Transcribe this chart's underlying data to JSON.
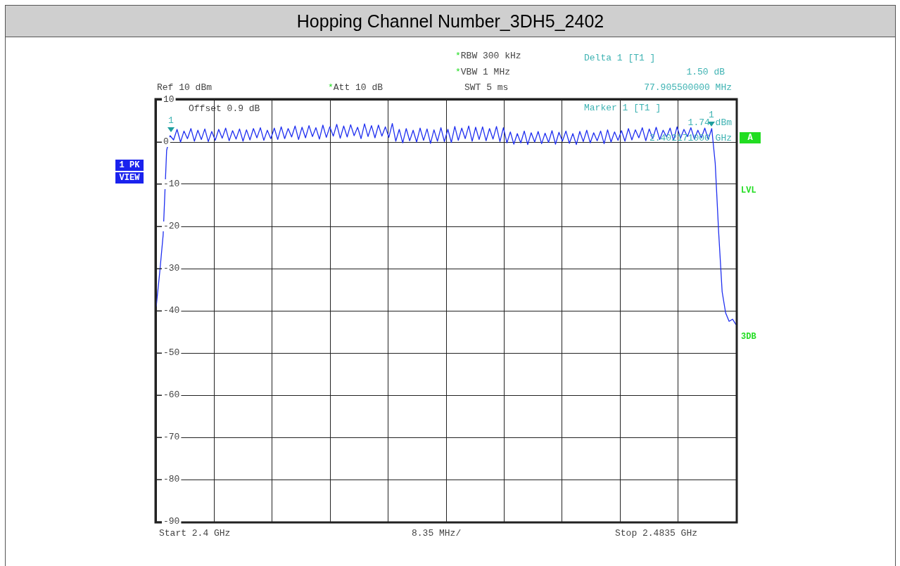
{
  "chart_data": {
    "type": "line",
    "title": "Hopping Channel Number_3DH5_2402",
    "categories": [
      null,
      null,
      null,
      null,
      null,
      null,
      null,
      null,
      null,
      null,
      null,
      null,
      null,
      null,
      null,
      null,
      null,
      null,
      null,
      null,
      null,
      null,
      null,
      null,
      null,
      null,
      null,
      null,
      null,
      null,
      null,
      null,
      null,
      null,
      null,
      null,
      null,
      null,
      null,
      null,
      null,
      null,
      null,
      null,
      null,
      null,
      null,
      null,
      null,
      null,
      null,
      null,
      null,
      null,
      null,
      null,
      null,
      null,
      null,
      null,
      null,
      null,
      null,
      null,
      null,
      null,
      null,
      null,
      null,
      null,
      null,
      null,
      null,
      null,
      null,
      null,
      null,
      null,
      null,
      null,
      null,
      null,
      null,
      null,
      null,
      null,
      null,
      null,
      null,
      null,
      null,
      null,
      null,
      null,
      null,
      null,
      null,
      null,
      null,
      null,
      null,
      null,
      null,
      null,
      null,
      null,
      null,
      null,
      null,
      null,
      null,
      null,
      null,
      null,
      null,
      null,
      null,
      null,
      null,
      null,
      null,
      null,
      null,
      null,
      null,
      null,
      null,
      null,
      null,
      null,
      null,
      null,
      null,
      null,
      null,
      null,
      null,
      null,
      null,
      null,
      null,
      null,
      null,
      null,
      null,
      null,
      null,
      null,
      null,
      null,
      null,
      null,
      null,
      null,
      null,
      null,
      null,
      null,
      null,
      null,
      null,
      null,
      null,
      null,
      null,
      null,
      null,
      null
    ],
    "ylim": [
      -90,
      10
    ],
    "yticks": [
      -90,
      -80,
      -70,
      -60,
      -50,
      -40,
      -30,
      -20,
      -10,
      0,
      10
    ],
    "tick_labels": "y",
    "grid": true,
    "legend": false,
    "marker": "none",
    "line_style": "solid",
    "series": [
      {
        "color": "#1f2ff0",
        "values": [
          -39,
          -31,
          -22,
          -2,
          1.5,
          0.5,
          3.0,
          0.0,
          2.6,
          0.8,
          3.2,
          0.2,
          2.8,
          0.6,
          3.1,
          0.1,
          2.5,
          0.4,
          3.0,
          0.9,
          3.3,
          0.3,
          2.7,
          0.7,
          3.1,
          0.2,
          2.9,
          0.5,
          3.2,
          1.0,
          3.4,
          0.4,
          2.8,
          0.8,
          3.3,
          0.6,
          3.6,
          0.8,
          3.2,
          1.2,
          3.8,
          0.6,
          3.5,
          1.0,
          3.9,
          1.3,
          3.4,
          0.7,
          4.0,
          1.1,
          3.6,
          1.4,
          4.2,
          0.9,
          3.8,
          1.2,
          4.1,
          1.5,
          3.5,
          0.8,
          4.3,
          1.3,
          3.9,
          1.0,
          4.0,
          1.4,
          3.6,
          1.1,
          4.4,
          0.2,
          3.0,
          -0.2,
          3.2,
          0.3,
          2.8,
          0.0,
          3.3,
          0.4,
          3.1,
          -0.3,
          2.9,
          0.2,
          3.4,
          0.1,
          3.0,
          -0.1,
          3.7,
          0.4,
          3.3,
          0.8,
          3.8,
          0.2,
          3.5,
          0.6,
          3.6,
          0.3,
          3.2,
          0.7,
          3.7,
          0.1,
          3.4,
          -0.2,
          2.4,
          -0.5,
          2.0,
          -0.2,
          2.6,
          -0.6,
          2.2,
          0.0,
          2.5,
          -0.4,
          2.1,
          -0.1,
          2.7,
          -0.5,
          2.3,
          0.2,
          2.6,
          -0.3,
          2.0,
          -0.6,
          2.5,
          0.1,
          2.8,
          -0.2,
          2.2,
          0.3,
          2.6,
          -0.4,
          2.9,
          0.0,
          2.4,
          0.4,
          2.7,
          0.2,
          3.2,
          0.5,
          2.9,
          1.0,
          3.4,
          0.3,
          3.1,
          0.8,
          3.5,
          0.6,
          2.8,
          1.2,
          3.3,
          0.4,
          3.6,
          0.9,
          3.0,
          1.3,
          3.4,
          0.7,
          2.8,
          1.0,
          3.3,
          0.6,
          3.2,
          -5,
          -21.5,
          -35.5,
          -40.5,
          -42.5,
          -42,
          -43.3
        ]
      }
    ],
    "annotations": [
      "*RBW 300 kHz",
      "*VBW 1 MHz",
      "SWT 5 ms",
      "Ref 10 dBm",
      "*Att 10 dB",
      "Offset 0.9 dB",
      "Delta 1 [T1 ]",
      "1.50 dB",
      "77.905500000 MHz",
      "Marker 1 [T1 ]",
      "1.74 dBm",
      "2.402171000 GHz",
      "1 PK",
      "VIEW",
      "A",
      "LVL",
      "3DB",
      "Start 2.4 GHz",
      "8.35 MHz/",
      "Stop 2.4835 GHz",
      "1",
      "1"
    ]
  }
}
